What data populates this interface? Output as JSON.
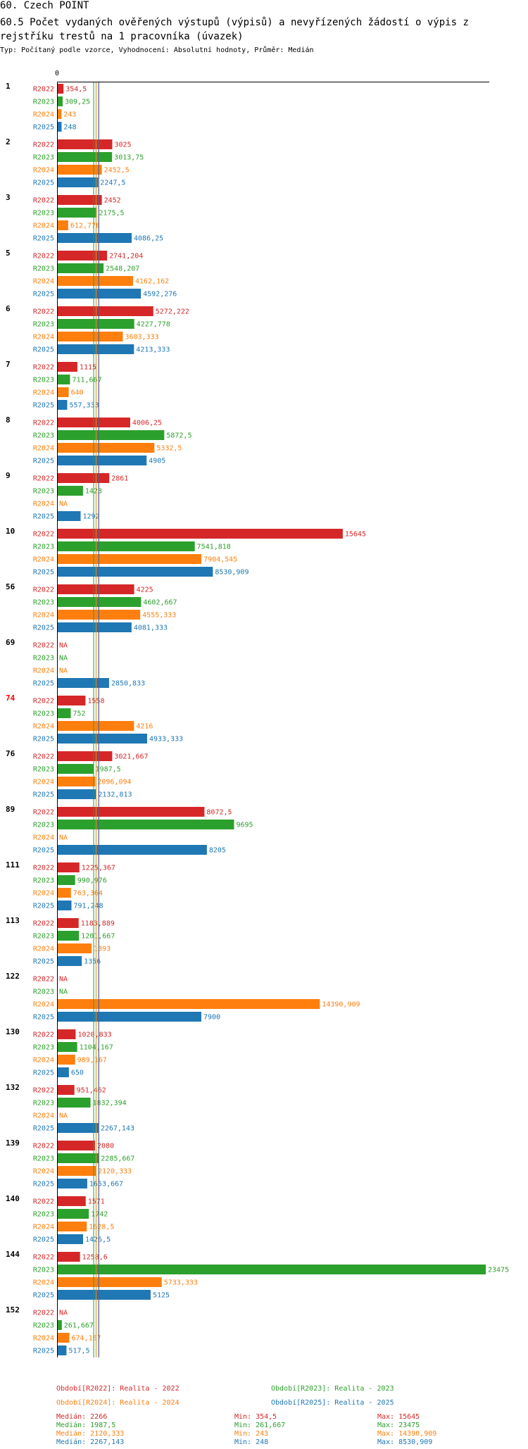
{
  "header": {
    "title": "60. Czech POINT",
    "subtitle": "60.5 Počet vydaných ověřených výstupů (výpisů) a nevyřízených žádostí o výpis z rejstříku trestů na 1 pracovníka (úvazek)",
    "type_line": "Typ: Počítaný podle vzorce, Vyhodnocení: Absolutní hodnoty, Průměr: Medián"
  },
  "colors": {
    "R2022": "#d62728",
    "R2023": "#2ca02c",
    "R2024": "#ff7f0e",
    "R2025": "#1f77b4",
    "highlight": "#ff0000"
  },
  "chart_data": {
    "type": "bar",
    "orientation": "horizontal",
    "axis_zero_label": "0",
    "xlim": [
      0,
      23475
    ],
    "na_label": "NA",
    "series_names": [
      "R2022",
      "R2023",
      "R2024",
      "R2025"
    ],
    "medians": [
      2266,
      1987.5,
      2120.333,
      2267.143
    ],
    "groups": [
      {
        "label": "1",
        "highlight": false,
        "values": [
          354.5,
          309.25,
          243,
          248
        ],
        "labels": [
          "354,5",
          "309,25",
          "243",
          "248"
        ]
      },
      {
        "label": "2",
        "highlight": false,
        "values": [
          3025,
          3013.75,
          2452.5,
          2247.5
        ],
        "labels": [
          "3025",
          "3013,75",
          "2452,5",
          "2247,5"
        ]
      },
      {
        "label": "3",
        "highlight": false,
        "values": [
          2452,
          2175.5,
          612.778,
          4086.25
        ],
        "labels": [
          "2452",
          "2175,5",
          "612,778",
          "4086,25"
        ]
      },
      {
        "label": "5",
        "highlight": false,
        "values": [
          2741.204,
          2548.207,
          4162.162,
          4592.276
        ],
        "labels": [
          "2741,204",
          "2548,207",
          "4162,162",
          "4592,276"
        ]
      },
      {
        "label": "6",
        "highlight": false,
        "values": [
          5272.222,
          4227.778,
          3603.333,
          4213.333
        ],
        "labels": [
          "5272,222",
          "4227,778",
          "3603,333",
          "4213,333"
        ]
      },
      {
        "label": "7",
        "highlight": false,
        "values": [
          1115,
          711.667,
          640,
          557.333
        ],
        "labels": [
          "1115",
          "711,667",
          "640",
          "557,333"
        ]
      },
      {
        "label": "8",
        "highlight": false,
        "values": [
          4006.25,
          5872.5,
          5332.5,
          4905
        ],
        "labels": [
          "4006,25",
          "5872,5",
          "5332,5",
          "4905"
        ]
      },
      {
        "label": "9",
        "highlight": false,
        "values": [
          2861,
          1423,
          null,
          1292
        ],
        "labels": [
          "2861",
          "1423",
          "NA",
          "1292"
        ]
      },
      {
        "label": "10",
        "highlight": false,
        "values": [
          15645,
          7541.818,
          7904.545,
          8530.909
        ],
        "labels": [
          "15645",
          "7541,818",
          "7904,545",
          "8530,909"
        ]
      },
      {
        "label": "56",
        "highlight": false,
        "values": [
          4225,
          4602.667,
          4555.333,
          4081.333
        ],
        "labels": [
          "4225",
          "4602,667",
          "4555,333",
          "4081,333"
        ]
      },
      {
        "label": "69",
        "highlight": false,
        "values": [
          null,
          null,
          null,
          2850.833
        ],
        "labels": [
          "NA",
          "NA",
          "NA",
          "2850,833"
        ]
      },
      {
        "label": "74",
        "highlight": true,
        "values": [
          1558,
          752,
          4216,
          4933.333
        ],
        "labels": [
          "1558",
          "752",
          "4216",
          "4933,333"
        ]
      },
      {
        "label": "76",
        "highlight": false,
        "values": [
          3021.667,
          1987.5,
          2096.094,
          2132.813
        ],
        "labels": [
          "3021,667",
          "1987,5",
          "2096,094",
          "2132,813"
        ]
      },
      {
        "label": "89",
        "highlight": false,
        "values": [
          8072.5,
          9695,
          null,
          8205
        ],
        "labels": [
          "8072,5",
          "9695",
          "NA",
          "8205"
        ]
      },
      {
        "label": "111",
        "highlight": false,
        "values": [
          1225.367,
          990.976,
          763.364,
          791.248
        ],
        "labels": [
          "1225,367",
          "990,976",
          "763,364",
          "791,248"
        ]
      },
      {
        "label": "113",
        "highlight": false,
        "values": [
          1183.889,
          1201.667,
          1893,
          1356
        ],
        "labels": [
          "1183,889",
          "1201,667",
          "1893",
          "1356"
        ]
      },
      {
        "label": "122",
        "highlight": false,
        "values": [
          null,
          null,
          14390.909,
          7900
        ],
        "labels": [
          "NA",
          "NA",
          "14390,909",
          "7900"
        ]
      },
      {
        "label": "130",
        "highlight": false,
        "values": [
          1020.833,
          1104.167,
          989.167,
          650
        ],
        "labels": [
          "1020,833",
          "1104,167",
          "989,167",
          "650"
        ]
      },
      {
        "label": "132",
        "highlight": false,
        "values": [
          951.462,
          1832.394,
          null,
          2267.143
        ],
        "labels": [
          "951,462",
          "1832,394",
          "NA",
          "2267,143"
        ]
      },
      {
        "label": "139",
        "highlight": false,
        "values": [
          2080,
          2285.667,
          2120.333,
          1653.667
        ],
        "labels": [
          "2080",
          "2285,667",
          "2120,333",
          "1653,667"
        ]
      },
      {
        "label": "140",
        "highlight": false,
        "values": [
          1571,
          1742,
          1628.5,
          1426.5
        ],
        "labels": [
          "1571",
          "1742",
          "1628,5",
          "1426,5"
        ]
      },
      {
        "label": "144",
        "highlight": false,
        "values": [
          1258.6,
          23475,
          5733.333,
          5125
        ],
        "labels": [
          "1258,6",
          "23475",
          "5733,333",
          "5125"
        ]
      },
      {
        "label": "152",
        "highlight": false,
        "values": [
          null,
          261.667,
          674.167,
          517.5
        ],
        "labels": [
          "NA",
          "261,667",
          "674,167",
          "517,5"
        ]
      }
    ]
  },
  "legend": {
    "periods": [
      "Období[R2022]: Realita - 2022",
      "Období[R2023]: Realita - 2023",
      "Období[R2024]: Realita - 2024",
      "Období[R2025]: Realita - 2025"
    ],
    "stats": [
      {
        "median": "Medián: 2266",
        "min": "Min: 354,5",
        "max": "Max: 15645"
      },
      {
        "median": "Medián: 1987,5",
        "min": "Min: 261,667",
        "max": "Max: 23475"
      },
      {
        "median": "Medián: 2120,333",
        "min": "Min: 243",
        "max": "Max: 14390,909"
      },
      {
        "median": "Medián: 2267,143",
        "min": "Min: 248",
        "max": "Max: 8530,909"
      }
    ]
  }
}
